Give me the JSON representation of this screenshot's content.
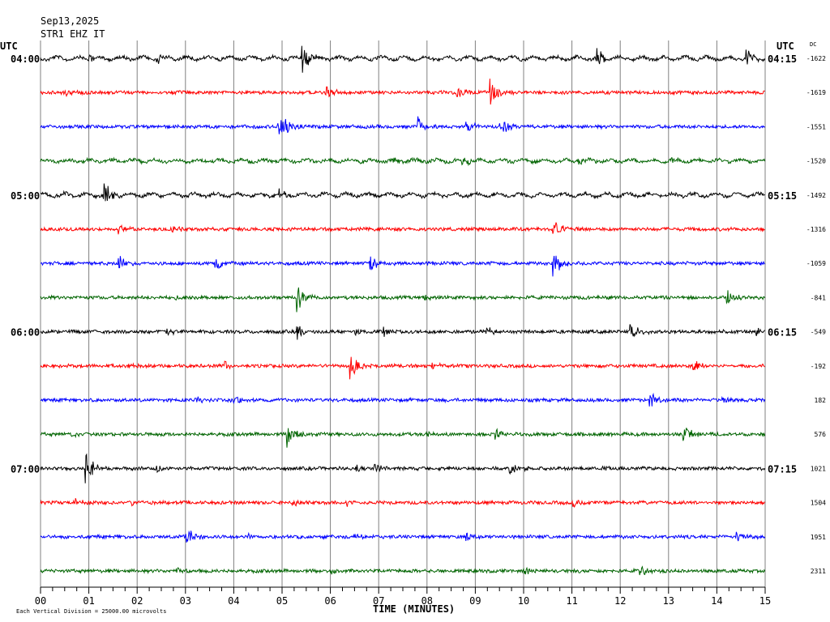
{
  "header": {
    "date": "Sep13,2025",
    "station": "STR1 EHZ IT",
    "left_tz": "UTC",
    "right_tz": "UTC",
    "dc_label": "DC"
  },
  "footer": {
    "xlabel": "TIME (MINUTES)",
    "scale_note": "Each Vertical Division = 25000.00 microvolts"
  },
  "chart_data": {
    "type": "line",
    "title": "",
    "xlabel": "TIME (MINUTES)",
    "ylabel": "",
    "xlim": [
      0,
      15
    ],
    "x_ticks": [
      "00",
      "01",
      "02",
      "03",
      "04",
      "05",
      "06",
      "07",
      "08",
      "09",
      "10",
      "11",
      "12",
      "13",
      "14",
      "15"
    ],
    "grid": true,
    "trace_colors": [
      "#000000",
      "#ff0000",
      "#0000ff",
      "#006400"
    ],
    "traces": [
      {
        "left_label": "04:00",
        "right_label": "04:15",
        "dc": "-1622",
        "events": [
          [
            5.4,
            2.2
          ],
          [
            11.5,
            1.3
          ],
          [
            14.6,
            1.1
          ],
          [
            1.0,
            0.6
          ],
          [
            2.4,
            0.6
          ]
        ],
        "swell": 0.6
      },
      {
        "left_label": "",
        "right_label": "",
        "dc": "-1619",
        "events": [
          [
            9.3,
            2.0
          ],
          [
            8.6,
            1.0
          ],
          [
            5.9,
            0.8
          ],
          [
            0.5,
            0.5
          ]
        ],
        "swell": 0.1
      },
      {
        "left_label": "",
        "right_label": "",
        "dc": "-1551",
        "events": [
          [
            4.9,
            3.0
          ],
          [
            7.8,
            1.4
          ],
          [
            8.8,
            1.2
          ],
          [
            9.5,
            1.6
          ]
        ],
        "swell": 0.1
      },
      {
        "left_label": "",
        "right_label": "",
        "dc": "-1520",
        "events": [
          [
            7.3,
            0.6
          ],
          [
            8.7,
            0.8
          ],
          [
            11.1,
            0.5
          ],
          [
            13.0,
            0.5
          ]
        ],
        "swell": 0.5
      },
      {
        "left_label": "05:00",
        "right_label": "05:15",
        "dc": "-1492",
        "events": [
          [
            1.3,
            1.7
          ],
          [
            4.9,
            1.0
          ],
          [
            0.3,
            0.4
          ]
        ],
        "swell": 0.6
      },
      {
        "left_label": "",
        "right_label": "",
        "dc": "-1316",
        "events": [
          [
            10.6,
            1.5
          ],
          [
            1.6,
            0.6
          ],
          [
            2.7,
            0.5
          ]
        ],
        "swell": 0.1
      },
      {
        "left_label": "",
        "right_label": "",
        "dc": "-1059",
        "events": [
          [
            1.6,
            1.2
          ],
          [
            3.6,
            0.9
          ],
          [
            6.8,
            1.2
          ],
          [
            10.6,
            2.0
          ]
        ],
        "swell": 0.1
      },
      {
        "left_label": "",
        "right_label": "",
        "dc": "-841",
        "events": [
          [
            5.3,
            1.8
          ],
          [
            14.2,
            1.2
          ],
          [
            2.8,
            0.4
          ],
          [
            7.9,
            0.4
          ]
        ],
        "swell": 0.1
      },
      {
        "left_label": "06:00",
        "right_label": "06:15",
        "dc": "-549",
        "events": [
          [
            5.3,
            1.2
          ],
          [
            2.6,
            0.6
          ],
          [
            6.5,
            0.6
          ],
          [
            7.1,
            0.7
          ],
          [
            9.2,
            0.8
          ],
          [
            12.2,
            1.2
          ],
          [
            14.8,
            0.5
          ]
        ],
        "swell": 0.1
      },
      {
        "left_label": "",
        "right_label": "",
        "dc": "-192",
        "events": [
          [
            6.4,
            1.7
          ],
          [
            13.5,
            1.0
          ],
          [
            1.8,
            0.5
          ],
          [
            3.8,
            0.6
          ],
          [
            8.1,
            0.4
          ]
        ],
        "swell": 0.1
      },
      {
        "left_label": "",
        "right_label": "",
        "dc": "182",
        "events": [
          [
            12.6,
            1.1
          ],
          [
            14.1,
            0.5
          ],
          [
            4.0,
            0.5
          ],
          [
            3.2,
            0.4
          ]
        ],
        "swell": 0.1
      },
      {
        "left_label": "",
        "right_label": "",
        "dc": "576",
        "events": [
          [
            5.1,
            1.6
          ],
          [
            9.4,
            0.9
          ],
          [
            13.3,
            1.2
          ],
          [
            0.6,
            0.5
          ],
          [
            7.9,
            0.4
          ]
        ],
        "swell": 0.1
      },
      {
        "left_label": "07:00",
        "right_label": "07:15",
        "dc": "1021",
        "events": [
          [
            0.9,
            2.8
          ],
          [
            2.4,
            0.6
          ],
          [
            6.5,
            0.6
          ],
          [
            6.9,
            0.9
          ],
          [
            9.7,
            1.1
          ],
          [
            11.6,
            0.4
          ]
        ],
        "swell": 0.1
      },
      {
        "left_label": "",
        "right_label": "",
        "dc": "1504",
        "events": [
          [
            0.7,
            0.7
          ],
          [
            1.8,
            0.5
          ],
          [
            5.2,
            0.6
          ],
          [
            6.3,
            0.5
          ],
          [
            11.0,
            0.7
          ]
        ],
        "swell": 0.1
      },
      {
        "left_label": "",
        "right_label": "",
        "dc": "1951",
        "events": [
          [
            3.0,
            1.7
          ],
          [
            8.8,
            0.9
          ],
          [
            14.4,
            0.7
          ],
          [
            6.5,
            0.5
          ],
          [
            4.3,
            0.4
          ]
        ],
        "swell": 0.1
      },
      {
        "left_label": "",
        "right_label": "",
        "dc": "2311",
        "events": [
          [
            2.8,
            0.6
          ],
          [
            10.0,
            0.6
          ],
          [
            12.4,
            0.7
          ],
          [
            6.0,
            0.4
          ]
        ],
        "swell": 0.1
      }
    ]
  }
}
